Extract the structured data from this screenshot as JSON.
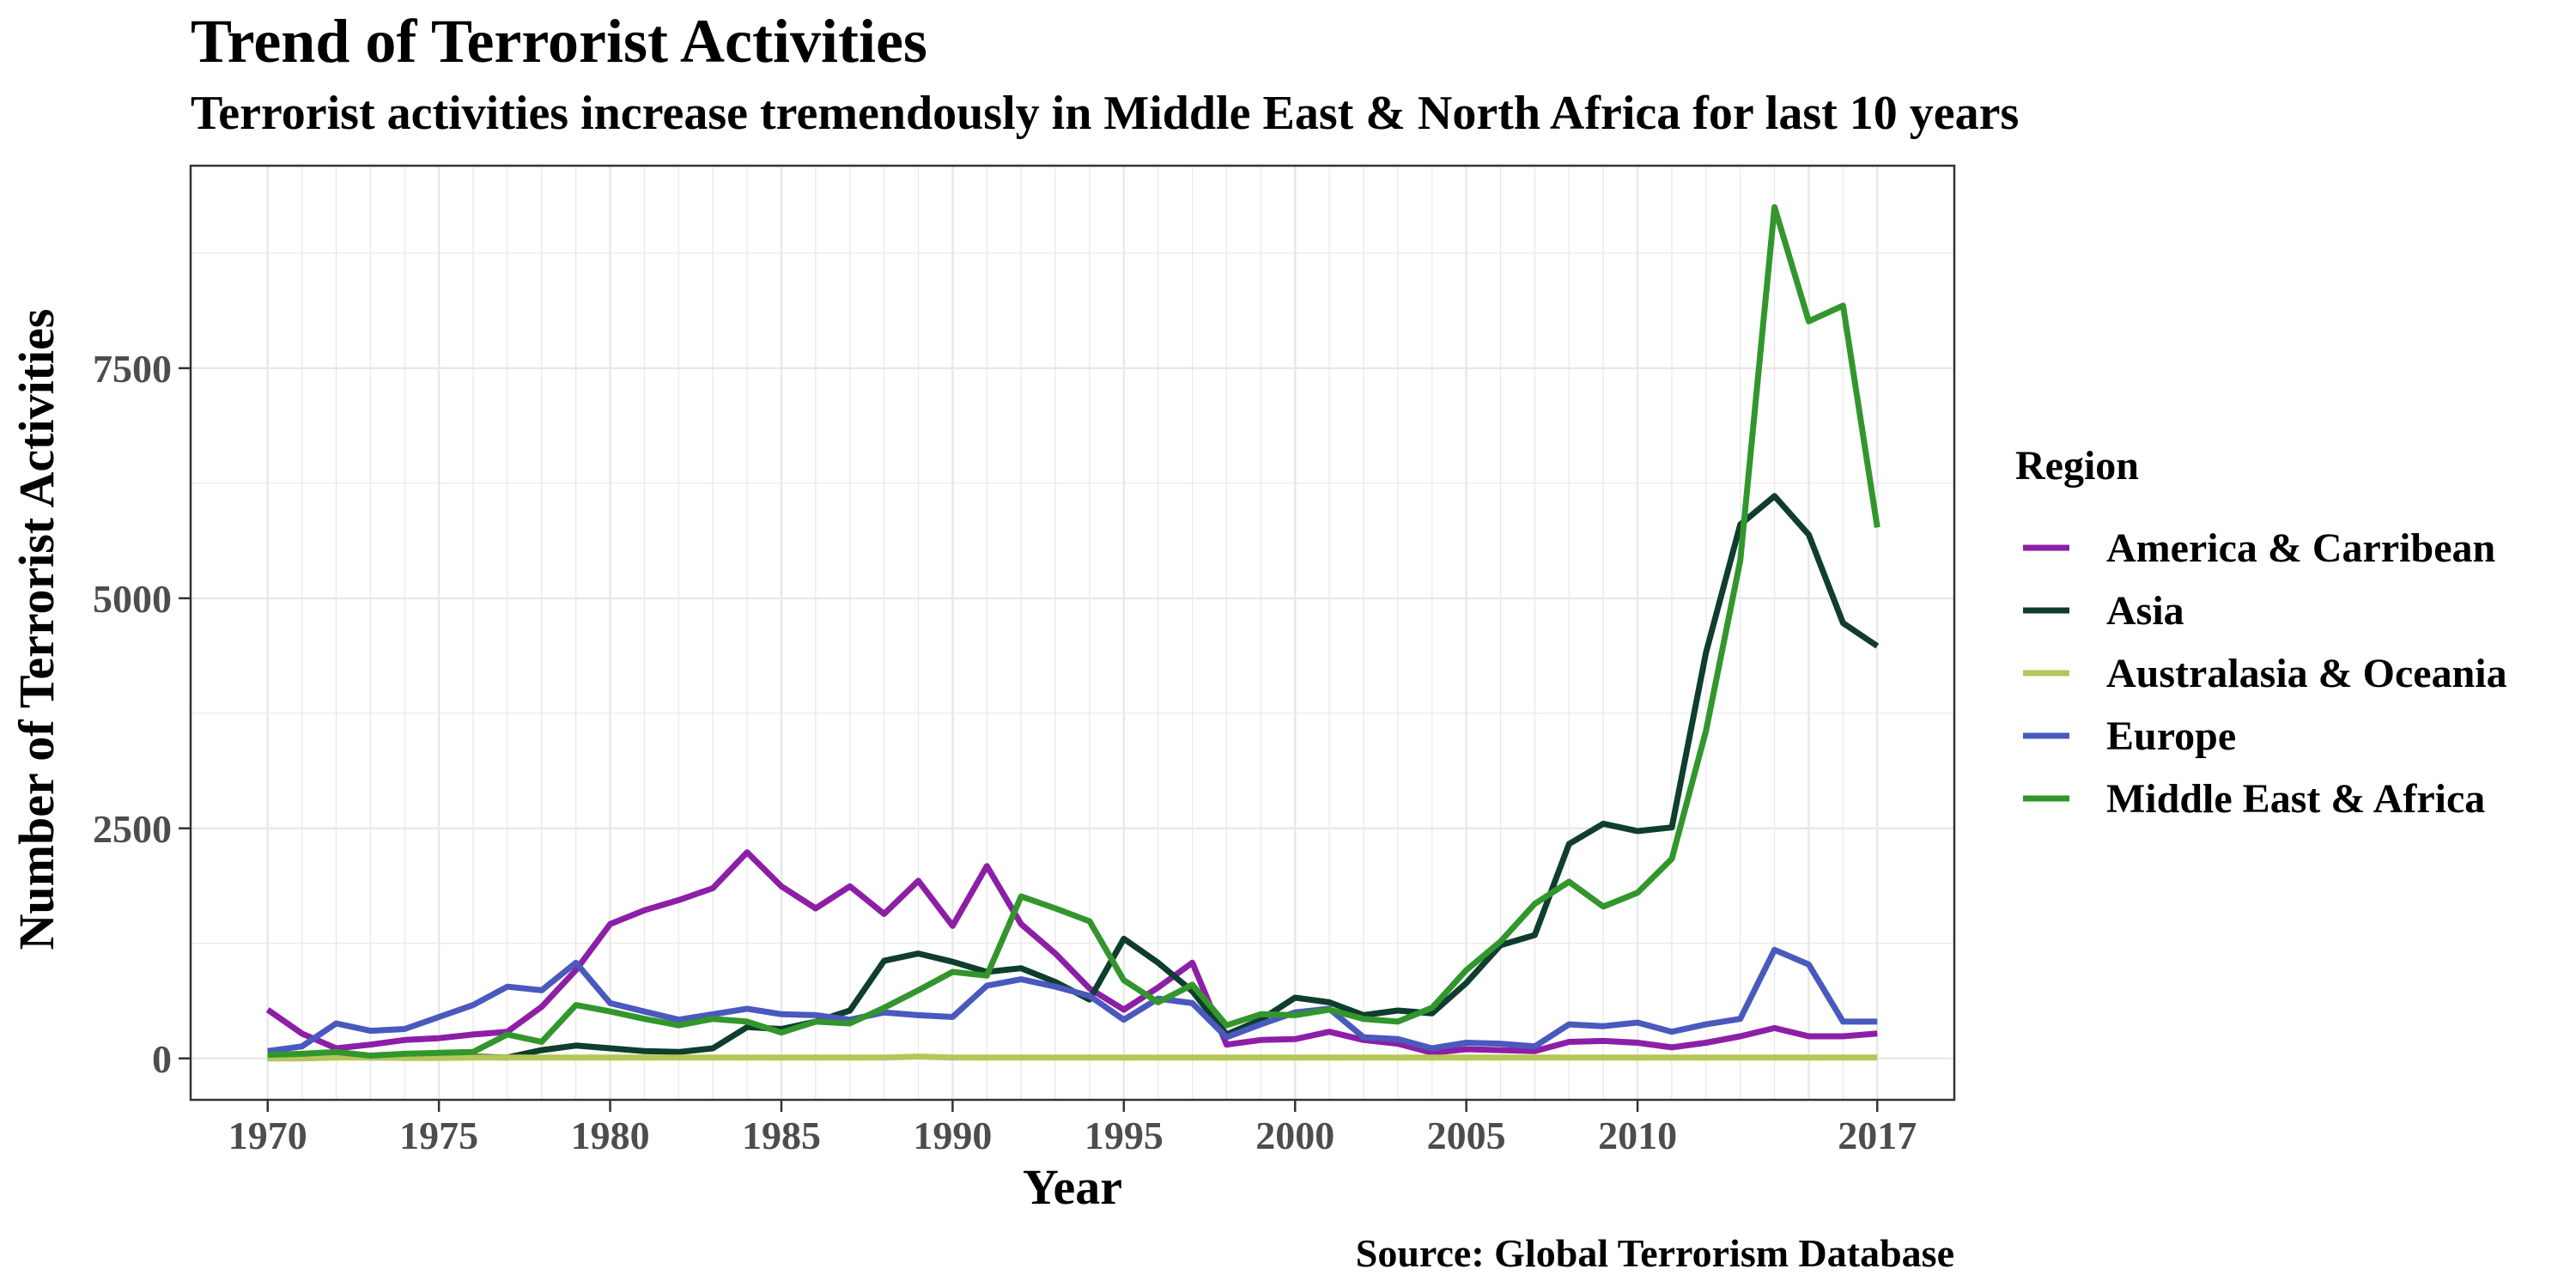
{
  "chart_data": {
    "type": "line",
    "title": "Trend of Terrorist Activities",
    "subtitle": "Terrorist activities increase tremendously in Middle East & North Africa for last 10 years",
    "caption": "Source: Global Terrorism Database",
    "xlabel": "Year",
    "ylabel": "Number of Terrorist Activities",
    "xlim": [
      1967.75,
      2019.25
    ],
    "ylim": [
      -450,
      9700
    ],
    "x_ticks": [
      1970,
      1975,
      1980,
      1985,
      1990,
      1995,
      2000,
      2005,
      2010,
      2017
    ],
    "x_tick_labels": [
      "1970",
      "1975",
      "1980",
      "1985",
      "1990",
      "1995",
      "2000",
      "2005",
      "2010",
      "2017"
    ],
    "y_ticks": [
      0,
      2500,
      5000,
      7500
    ],
    "y_tick_labels": [
      "0",
      "2500",
      "5000",
      "7500"
    ],
    "grid": true,
    "legend_title": "Region",
    "legend_position": "right",
    "x": [
      1970,
      1971,
      1972,
      1973,
      1974,
      1975,
      1976,
      1977,
      1978,
      1979,
      1980,
      1981,
      1982,
      1983,
      1984,
      1985,
      1986,
      1987,
      1988,
      1989,
      1990,
      1991,
      1992,
      1993,
      1994,
      1995,
      1996,
      1997,
      1998,
      1999,
      2000,
      2001,
      2002,
      2003,
      2004,
      2005,
      2006,
      2007,
      2008,
      2009,
      2010,
      2011,
      2012,
      2013,
      2014,
      2015,
      2016,
      2017
    ],
    "series": [
      {
        "name": "America & Carribean",
        "color": "#8C1FA6",
        "values": [
          530,
          270,
          110,
          150,
          200,
          220,
          260,
          290,
          560,
          960,
          1460,
          1610,
          1720,
          1850,
          2240,
          1870,
          1630,
          1870,
          1570,
          1930,
          1440,
          2090,
          1460,
          1140,
          760,
          530,
          770,
          1040,
          150,
          200,
          210,
          290,
          200,
          160,
          60,
          100,
          90,
          80,
          180,
          190,
          170,
          120,
          170,
          240,
          330,
          240,
          240,
          270
        ]
      },
      {
        "name": "Asia",
        "color": "#0F3D2E",
        "values": [
          10,
          10,
          30,
          10,
          20,
          30,
          20,
          10,
          90,
          140,
          110,
          80,
          70,
          110,
          340,
          320,
          400,
          520,
          1060,
          1140,
          1050,
          940,
          980,
          830,
          640,
          1300,
          1040,
          730,
          260,
          420,
          660,
          610,
          470,
          520,
          490,
          820,
          1230,
          1340,
          2330,
          2550,
          2470,
          2510,
          4410,
          5800,
          6110,
          5690,
          4730,
          4480
        ]
      },
      {
        "name": "Australasia & Oceania",
        "color": "#B5C65A",
        "values": [
          0,
          0,
          10,
          10,
          5,
          5,
          10,
          10,
          10,
          10,
          10,
          10,
          10,
          10,
          10,
          10,
          10,
          10,
          10,
          20,
          10,
          10,
          10,
          10,
          10,
          10,
          10,
          10,
          10,
          10,
          10,
          10,
          10,
          10,
          10,
          10,
          10,
          10,
          10,
          10,
          10,
          10,
          10,
          10,
          10,
          10,
          10,
          10
        ]
      },
      {
        "name": "Europe",
        "color": "#4A59BD",
        "values": [
          80,
          130,
          380,
          300,
          320,
          450,
          580,
          780,
          740,
          1040,
          600,
          510,
          420,
          480,
          540,
          480,
          470,
          420,
          500,
          470,
          450,
          790,
          860,
          780,
          680,
          420,
          650,
          600,
          230,
          370,
          500,
          540,
          230,
          210,
          110,
          170,
          160,
          130,
          370,
          350,
          390,
          290,
          370,
          430,
          1180,
          1020,
          400,
          400
        ]
      },
      {
        "name": "Middle East & Africa",
        "color": "#32962D",
        "values": [
          40,
          50,
          70,
          30,
          50,
          60,
          70,
          260,
          180,
          580,
          510,
          430,
          360,
          430,
          400,
          280,
          400,
          380,
          550,
          740,
          940,
          900,
          1760,
          1630,
          1490,
          850,
          610,
          800,
          360,
          480,
          470,
          530,
          430,
          400,
          550,
          960,
          1270,
          1680,
          1920,
          1650,
          1800,
          2170,
          3560,
          5410,
          9250,
          8010,
          8180,
          5770
        ]
      }
    ]
  }
}
